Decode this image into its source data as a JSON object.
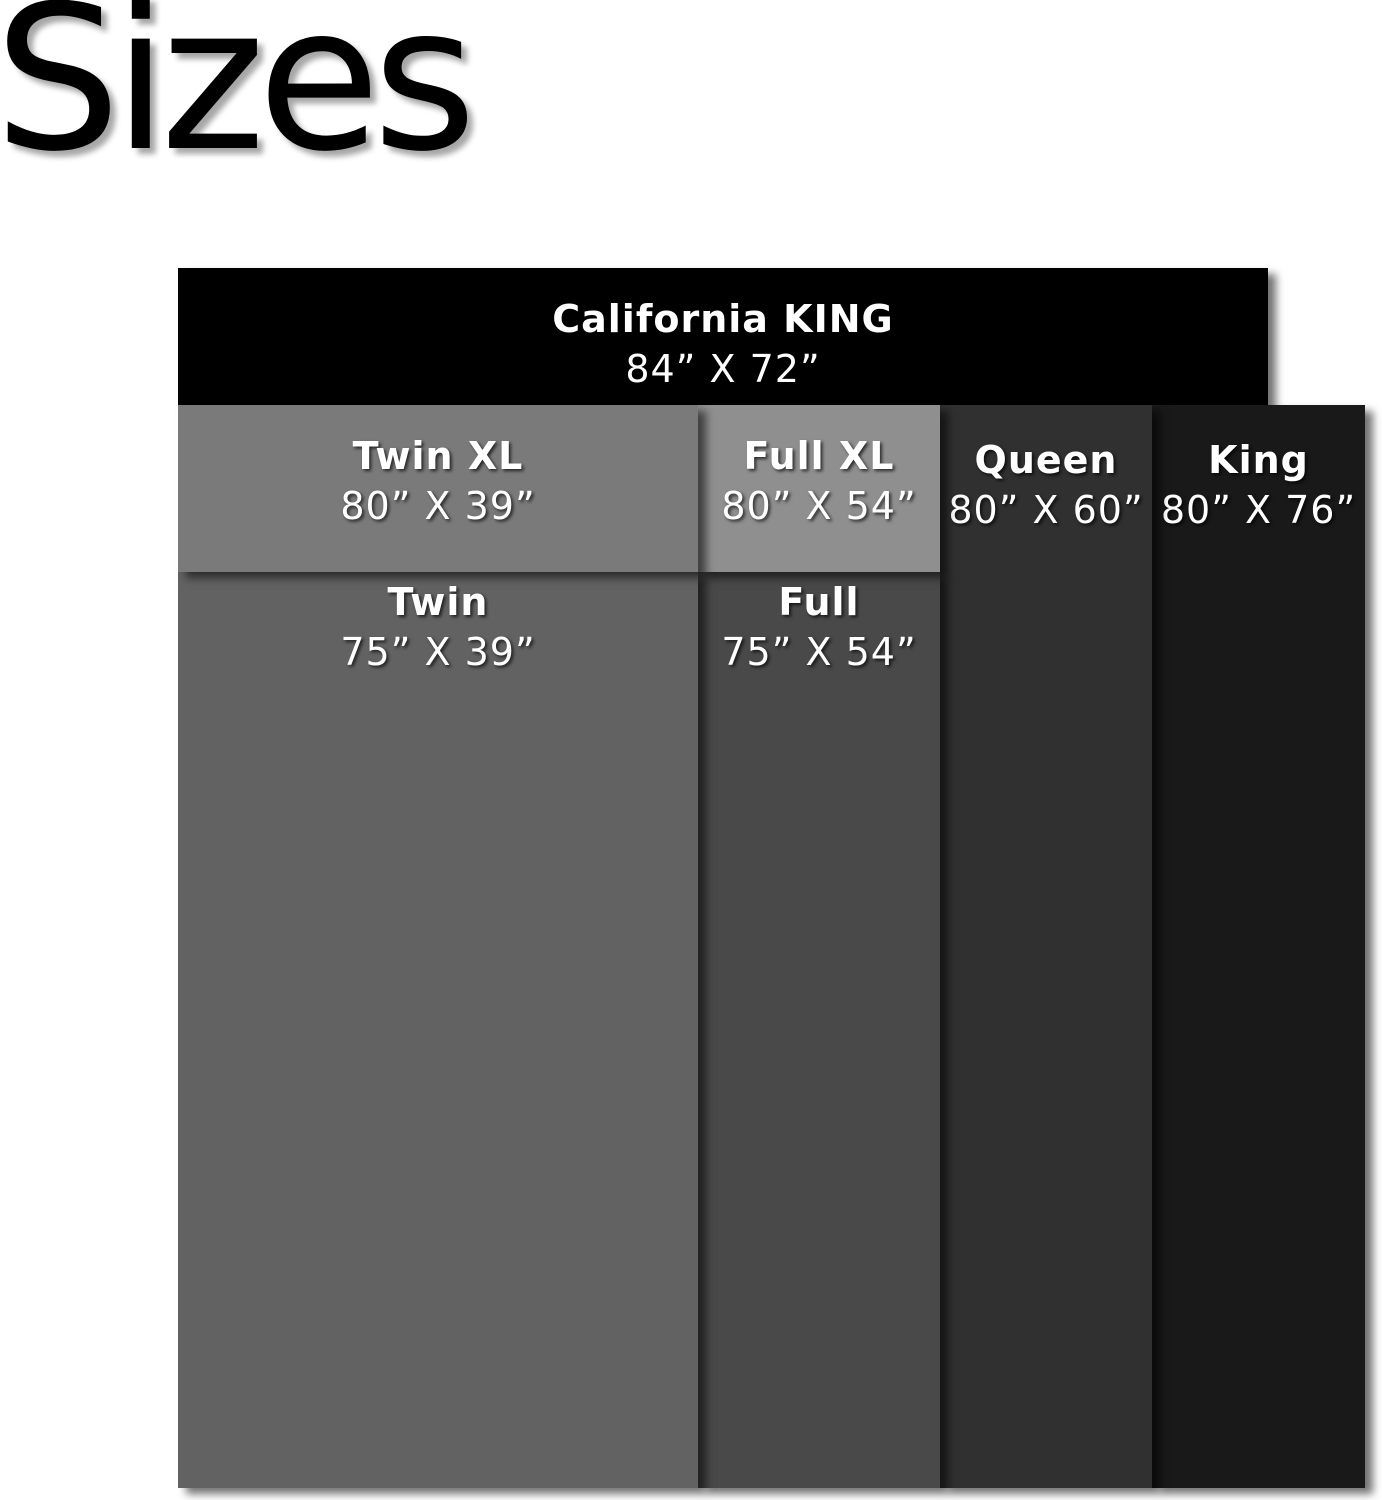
{
  "title": "Sizes",
  "sizes": {
    "california_king": {
      "name": "California KING",
      "dims": "84” X 72”",
      "color": "#000000"
    },
    "king": {
      "name": "King",
      "dims": "80” X 76”",
      "color": "#191919"
    },
    "queen": {
      "name": "Queen",
      "dims": "80” X 60”",
      "color": "#303030"
    },
    "full": {
      "name": "Full",
      "dims": "75” X 54”",
      "color": "#494949"
    },
    "full_xl": {
      "name": "Full XL",
      "dims": "80” X 54”",
      "color": "#8f8f8f"
    },
    "twin": {
      "name": "Twin",
      "dims": "75” X 39”",
      "color": "#626262"
    },
    "twin_xl": {
      "name": "Twin XL",
      "dims": "80” X 39”",
      "color": "#7a7a7a"
    }
  }
}
